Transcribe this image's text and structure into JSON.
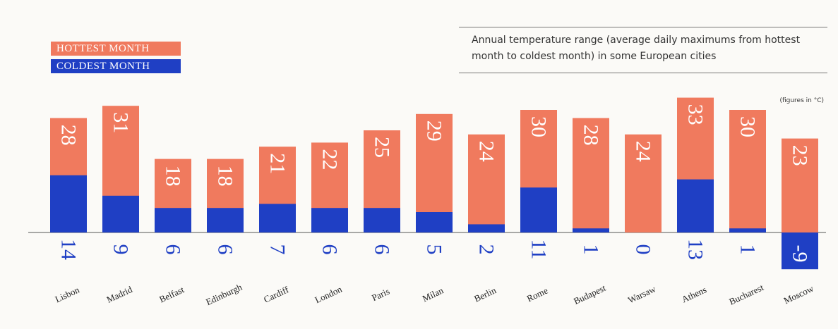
{
  "legend": {
    "hottest": "HOTTEST MONTH",
    "coldest": "COLDEST MONTH"
  },
  "title": "Annual temperature range (average daily maximums from hottest month to coldest month) in some European cities",
  "units": "(figures in °C)",
  "colors": {
    "hottest": "#f07a5e",
    "coldest": "#1f3fc4",
    "background": "#fbfaf7"
  },
  "chart_data": {
    "type": "bar",
    "categories": [
      "Lisbon",
      "Madrid",
      "Belfast",
      "Edinburgh",
      "Cardiff",
      "London",
      "Paris",
      "Milan",
      "Berlin",
      "Rome",
      "Budapest",
      "Warsaw",
      "Athens",
      "Bucharest",
      "Moscow"
    ],
    "series": [
      {
        "name": "HOTTEST MONTH",
        "values": [
          28,
          31,
          18,
          18,
          21,
          22,
          25,
          29,
          24,
          30,
          28,
          24,
          33,
          30,
          23
        ]
      },
      {
        "name": "COLDEST MONTH",
        "values": [
          14,
          9,
          6,
          6,
          7,
          6,
          6,
          5,
          2,
          11,
          1,
          0,
          13,
          1,
          -9
        ]
      }
    ],
    "ylim": [
      -9,
      33
    ],
    "grid": false,
    "legend_position": "top-left"
  }
}
